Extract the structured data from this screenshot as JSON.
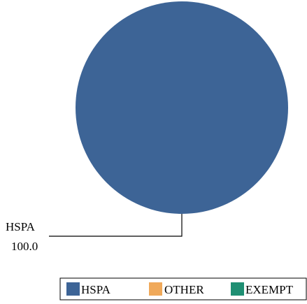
{
  "chart_data": {
    "type": "pie",
    "categories": [
      "HSPA",
      "OTHER",
      "EXEMPT"
    ],
    "values": [
      100.0,
      0,
      0
    ],
    "value_labels": [
      "100.0",
      "",
      ""
    ],
    "colors": [
      "#3d6496",
      "#f0a95a",
      "#1f8f73"
    ],
    "legend_position": "bottom",
    "title": ""
  }
}
